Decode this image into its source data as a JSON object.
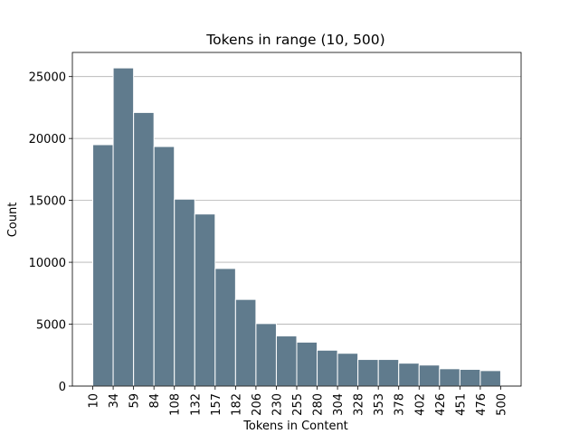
{
  "chart_data": {
    "type": "histogram",
    "title": "Tokens in range (10, 500)",
    "x_label": "Tokens in Content",
    "y_label": "Count",
    "bins": [
      10,
      34.5,
      59,
      83.5,
      108,
      132.5,
      157,
      181.5,
      206,
      230.5,
      255,
      279.5,
      304,
      328.5,
      353,
      377.5,
      402,
      426.5,
      451,
      475.5,
      500
    ],
    "values": [
      19500,
      25700,
      22100,
      19350,
      15100,
      13900,
      9500,
      7000,
      5050,
      4050,
      3550,
      2900,
      2650,
      2150,
      2150,
      1850,
      1700,
      1400,
      1350,
      1250
    ],
    "color": "#607b8d",
    "xlim": [
      -14.5,
      524.5
    ],
    "xticks": [
      10,
      {
        "value": 34.5,
        "label": "34"
      },
      59,
      {
        "value": 83.5,
        "label": "84"
      },
      108,
      {
        "value": 132.5,
        "label": "132"
      },
      157,
      {
        "value": 181.5,
        "label": "182"
      },
      206,
      {
        "value": 230.5,
        "label": "230"
      },
      255,
      {
        "value": 279.5,
        "label": "280"
      },
      304,
      {
        "value": 328.5,
        "label": "328"
      },
      353,
      {
        "value": 377.5,
        "label": "378"
      },
      402,
      {
        "value": 426.5,
        "label": "426"
      },
      451,
      {
        "value": 475.5,
        "label": "476"
      },
      500
    ],
    "ylim": [
      0,
      26950
    ],
    "yticks": [
      0,
      5000,
      10000,
      15000,
      20000,
      25000
    ],
    "grid": true
  }
}
